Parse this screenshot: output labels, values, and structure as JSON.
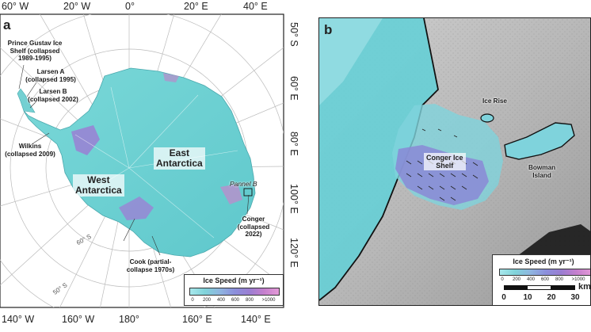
{
  "panel_a": {
    "letter": "a",
    "lon_labels_top": [
      "60° W",
      "20° W",
      "0°",
      "20° E",
      "40° E"
    ],
    "lon_labels_bottom": [
      "140° W",
      "160° W",
      "180°",
      "160° E",
      "140° E"
    ],
    "lon_labels_right": [
      "50° S",
      "60° E",
      "80° E",
      "100° E",
      "120° E"
    ],
    "lat_circle_labels": [
      "60° S",
      "50° S"
    ],
    "region_labels": {
      "east": "East\nAntarctica",
      "west": "West\nAntarctica"
    },
    "annotations": {
      "prince_gustav": "Prince Gustav Ice\nShelf (collapsed\n1989-1995)",
      "larsen_a": "Larsen A\n(collapsed 1995)",
      "larsen_b": "Larsen B\n(collapsed 2002)",
      "wilkins": "Wilkins\n(collapsed 2009)",
      "cook": "Cook (partial-\ncollapse 1970s)",
      "conger": "Conger\n(collapsed\n2022)",
      "pannel_b": "Pannel B"
    },
    "legend": {
      "title": "Ice Speed (m yr⁻¹)",
      "ticks": [
        "0",
        "200",
        "400",
        "600",
        "800",
        ">1000"
      ]
    }
  },
  "panel_b": {
    "letter": "b",
    "labels": {
      "ice_rise": "Ice Rise",
      "conger": "Conger Ice\nShelf",
      "bowman": "Bowman\nIsland"
    },
    "legend": {
      "title": "Ice Speed (m yr⁻¹)",
      "ticks": [
        "0",
        "200",
        "400",
        "600",
        "800",
        ">1000"
      ],
      "scale_unit": "km",
      "scale_ticks": [
        "0",
        "10",
        "20",
        "30"
      ]
    }
  },
  "colors": {
    "ice_slow": "#7fd6d6",
    "ice_mid": "#8a93dc",
    "ice_fast": "#c47ac4",
    "ramp": [
      "#a8e8ec",
      "#80d3da",
      "#8fb6e0",
      "#8b8fdc",
      "#9a7ed2",
      "#c57fcd",
      "#e39ad8"
    ]
  }
}
